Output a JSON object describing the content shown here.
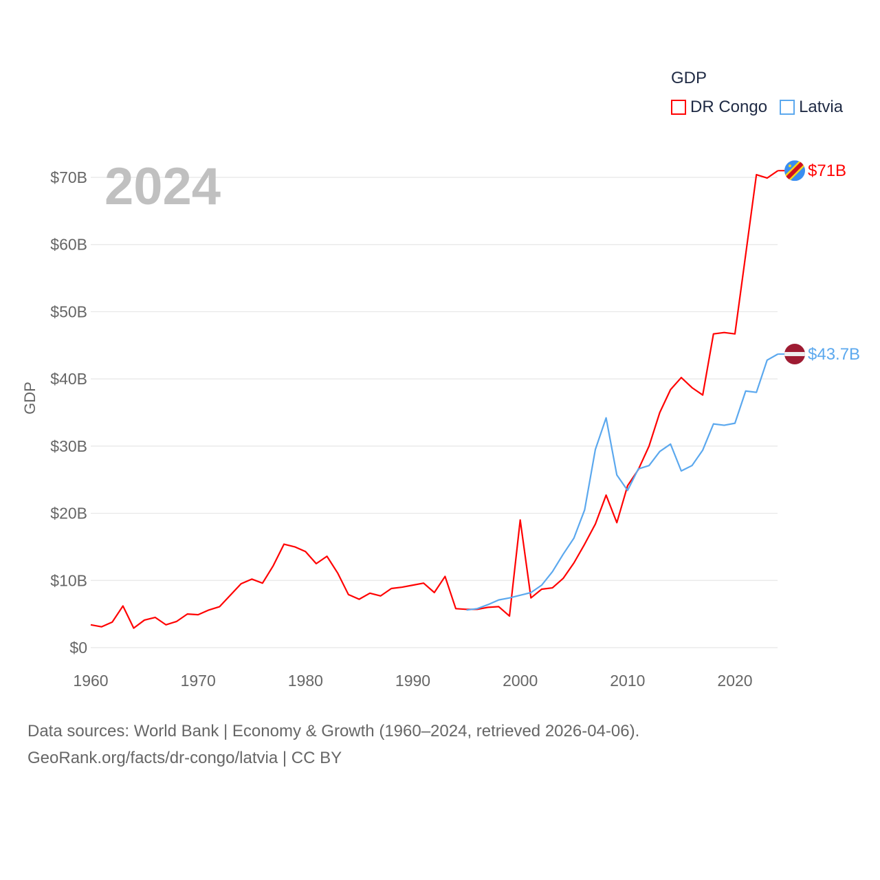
{
  "chart_data": {
    "type": "line",
    "title": "GDP",
    "ylabel": "GDP",
    "xlabel": "",
    "year_label": "2024",
    "xlim": [
      1960,
      2024
    ],
    "ylim": [
      0,
      70
    ],
    "x_ticks": [
      "1960",
      "1970",
      "1980",
      "1990",
      "2000",
      "2010",
      "2020"
    ],
    "y_ticks": [
      "$0",
      "$10B",
      "$20B",
      "$30B",
      "$40B",
      "$50B",
      "$60B",
      "$70B"
    ],
    "grid": true,
    "legend_position": "top-right",
    "series": [
      {
        "name": "DR Congo",
        "color": "#ff0000",
        "end_label": "$71B",
        "start_year": 1960,
        "values": [
          3.4,
          3.1,
          3.8,
          6.2,
          2.9,
          4.1,
          4.5,
          3.4,
          3.9,
          5.0,
          4.9,
          5.6,
          6.1,
          7.8,
          9.5,
          10.2,
          9.6,
          12.2,
          15.4,
          15.0,
          14.3,
          12.5,
          13.6,
          11.1,
          7.9,
          7.2,
          8.1,
          7.7,
          8.8,
          9.0,
          9.3,
          9.6,
          8.2,
          10.6,
          5.8,
          5.7,
          5.7,
          6.0,
          6.1,
          4.7,
          19.0,
          7.4,
          8.7,
          8.9,
          10.3,
          12.6,
          15.4,
          18.4,
          22.7,
          18.6,
          24.1,
          26.5,
          30.0,
          35.0,
          38.4,
          40.2,
          38.7,
          37.6,
          46.7,
          46.9,
          46.7,
          58.5,
          70.4,
          69.9,
          71.0
        ]
      },
      {
        "name": "Latvia",
        "color": "#5ba8ee",
        "end_label": "$43.7B",
        "start_year": 1995,
        "values": [
          5.6,
          5.8,
          6.4,
          7.1,
          7.4,
          7.8,
          8.2,
          9.3,
          11.3,
          13.9,
          16.3,
          20.5,
          29.5,
          34.2,
          25.7,
          23.4,
          26.6,
          27.1,
          29.2,
          30.3,
          26.3,
          27.1,
          29.4,
          33.3,
          33.1,
          33.4,
          38.2,
          38.0,
          42.8,
          43.7
        ]
      }
    ]
  },
  "source": {
    "line1": "Data sources: World Bank | Economy & Growth (1960–2024, retrieved 2026-04-06).",
    "line2": "GeoRank.org/facts/dr-congo/latvia | CC BY"
  }
}
